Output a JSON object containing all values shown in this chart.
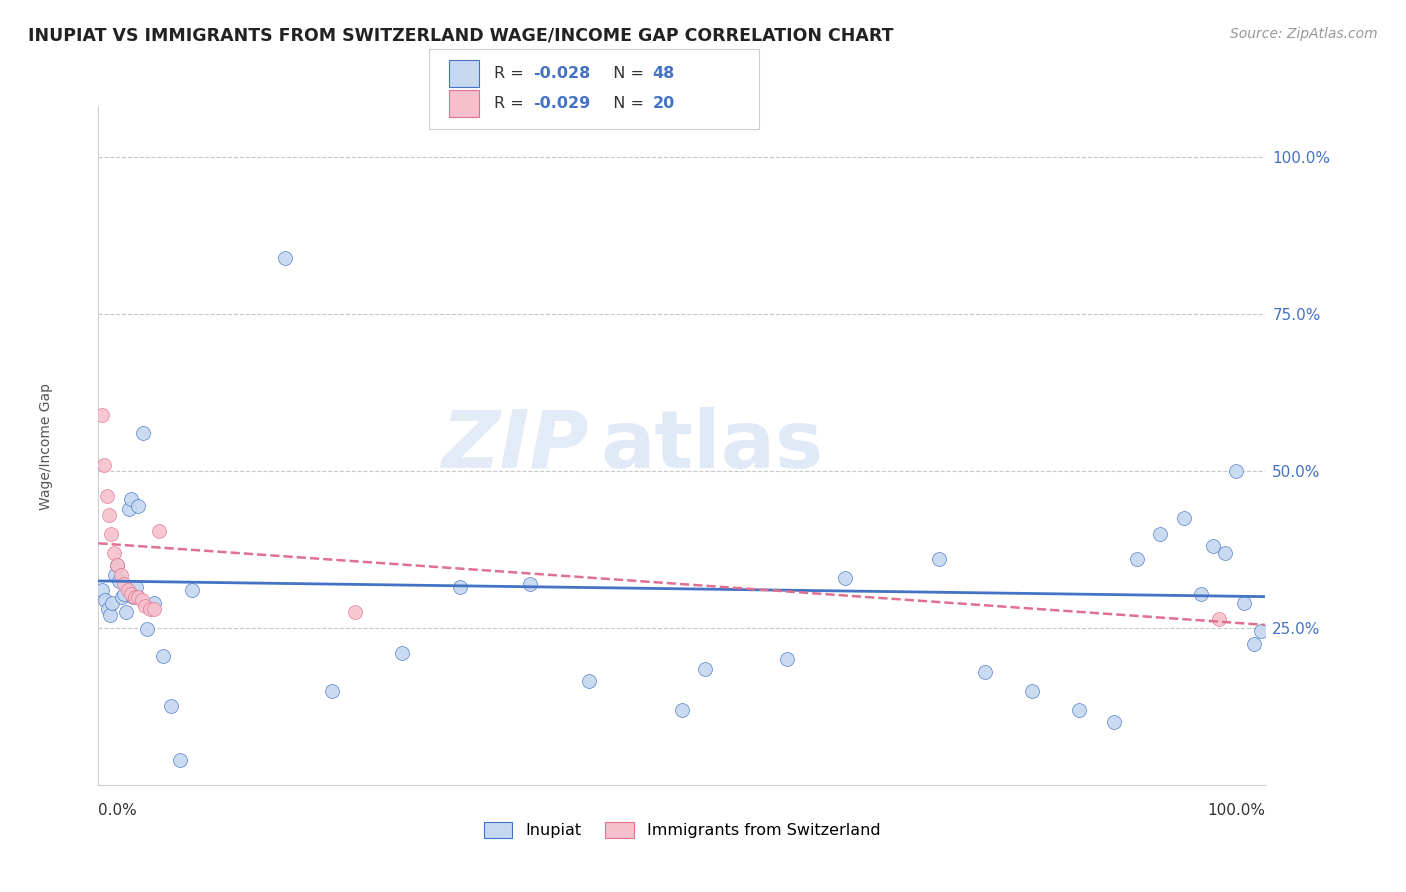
{
  "title": "INUPIAT VS IMMIGRANTS FROM SWITZERLAND WAGE/INCOME GAP CORRELATION CHART",
  "source": "Source: ZipAtlas.com",
  "ylabel": "Wage/Income Gap",
  "legend_label1": "Inupiat",
  "legend_label2": "Immigrants from Switzerland",
  "r1": "-0.028",
  "n1": "48",
  "r2": "-0.029",
  "n2": "20",
  "color_blue": "#c5d8f0",
  "color_pink": "#f5c0cc",
  "line_blue": "#4472c4",
  "line_pink": "#e07090",
  "watermark_zip": "ZIP",
  "watermark_atlas": "atlas",
  "ytick_values": [
    0.25,
    0.5,
    0.75,
    1.0
  ],
  "ytick_labels": [
    "25.0%",
    "50.0%",
    "75.0%",
    "100.0%"
  ],
  "inupiat_x": [
    0.003,
    0.006,
    0.008,
    0.01,
    0.012,
    0.014,
    0.016,
    0.018,
    0.02,
    0.022,
    0.024,
    0.026,
    0.028,
    0.03,
    0.032,
    0.034,
    0.038,
    0.042,
    0.048,
    0.055,
    0.062,
    0.07,
    0.08,
    0.16,
    0.2,
    0.26,
    0.31,
    0.37,
    0.42,
    0.5,
    0.52,
    0.59,
    0.64,
    0.72,
    0.76,
    0.8,
    0.84,
    0.87,
    0.89,
    0.91,
    0.93,
    0.945,
    0.955,
    0.965,
    0.975,
    0.982,
    0.99,
    0.996
  ],
  "inupiat_y": [
    0.31,
    0.295,
    0.28,
    0.27,
    0.29,
    0.335,
    0.35,
    0.325,
    0.3,
    0.305,
    0.275,
    0.44,
    0.455,
    0.3,
    0.315,
    0.445,
    0.56,
    0.248,
    0.29,
    0.205,
    0.125,
    0.04,
    0.31,
    0.84,
    0.15,
    0.21,
    0.315,
    0.32,
    0.165,
    0.12,
    0.185,
    0.2,
    0.33,
    0.36,
    0.18,
    0.15,
    0.12,
    0.1,
    0.36,
    0.4,
    0.425,
    0.305,
    0.38,
    0.37,
    0.5,
    0.29,
    0.225,
    0.245
  ],
  "swiss_x": [
    0.003,
    0.005,
    0.007,
    0.009,
    0.011,
    0.013,
    0.016,
    0.019,
    0.022,
    0.025,
    0.028,
    0.031,
    0.034,
    0.037,
    0.04,
    0.044,
    0.048,
    0.052,
    0.22,
    0.96
  ],
  "swiss_y": [
    0.59,
    0.51,
    0.46,
    0.43,
    0.4,
    0.37,
    0.35,
    0.335,
    0.32,
    0.31,
    0.305,
    0.3,
    0.3,
    0.295,
    0.285,
    0.28,
    0.28,
    0.405,
    0.275,
    0.265
  ]
}
